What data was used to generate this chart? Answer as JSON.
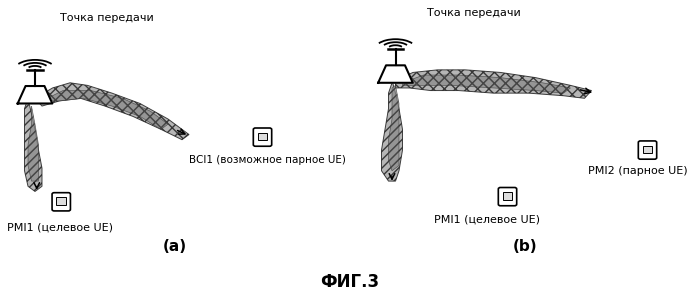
{
  "title": "ФИГ.3",
  "panel_a_label": "(a)",
  "panel_b_label": "(b)",
  "tp_label": "Точка передачи",
  "pmi1_label_a": "PMI1 (целевое UE)",
  "bci1_label": "BCI1 (возможное парное UE)",
  "pmi1_label_b": "PMI1 (целевое UE)",
  "pmi2_label": "PMI2 (парное UE)",
  "bg_color": "#ffffff",
  "text_color": "#000000",
  "beam_fill": "#aaaaaa",
  "beam_edge": "#333333",
  "title_fontsize": 12,
  "label_fontsize": 8,
  "panel_label_fontsize": 11
}
